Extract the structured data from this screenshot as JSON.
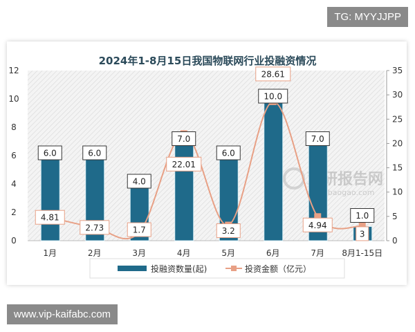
{
  "watermarks": {
    "top_right": "TG: MYYJJPP",
    "bottom_left": "www.vip-kaifabc.com",
    "logo_text": "观研报告网",
    "logo_url": "chinabaogao.com"
  },
  "chart_data": {
    "type": "bar+line",
    "title": "2024年1-8月15日我国物联网行业投融资情况",
    "categories": [
      "1月",
      "2月",
      "3月",
      "4月",
      "5月",
      "6月",
      "7月",
      "8月1-15日"
    ],
    "series": [
      {
        "name": "投融资数量(起)",
        "type": "bar",
        "axis": "left",
        "color": "#1f6a8a",
        "values": [
          6.0,
          6.0,
          4.0,
          7.0,
          6.0,
          10.0,
          7.0,
          1.0
        ],
        "labels": [
          "6.0",
          "6.0",
          "4.0",
          "7.0",
          "6.0",
          "10.0",
          "7.0",
          "1.0"
        ]
      },
      {
        "name": "投资金额（亿元）",
        "type": "line",
        "axis": "right",
        "color": "#e8a085",
        "values": [
          4.81,
          2.73,
          1.7,
          22.01,
          3.2,
          28.61,
          4.94,
          3
        ],
        "labels": [
          "4.81",
          "2.73",
          "1.7",
          "22.01",
          "3.2",
          "28.61",
          "4.94",
          "3"
        ]
      }
    ],
    "left_axis": {
      "min": 0,
      "max": 12,
      "ticks": [
        "0",
        "2",
        "4",
        "6",
        "8",
        "10",
        "12"
      ]
    },
    "right_axis": {
      "min": 0,
      "max": 35,
      "ticks": [
        "0",
        "5",
        "10",
        "15",
        "20",
        "25",
        "30",
        "35"
      ]
    },
    "legend_position": "bottom",
    "grid": false
  }
}
